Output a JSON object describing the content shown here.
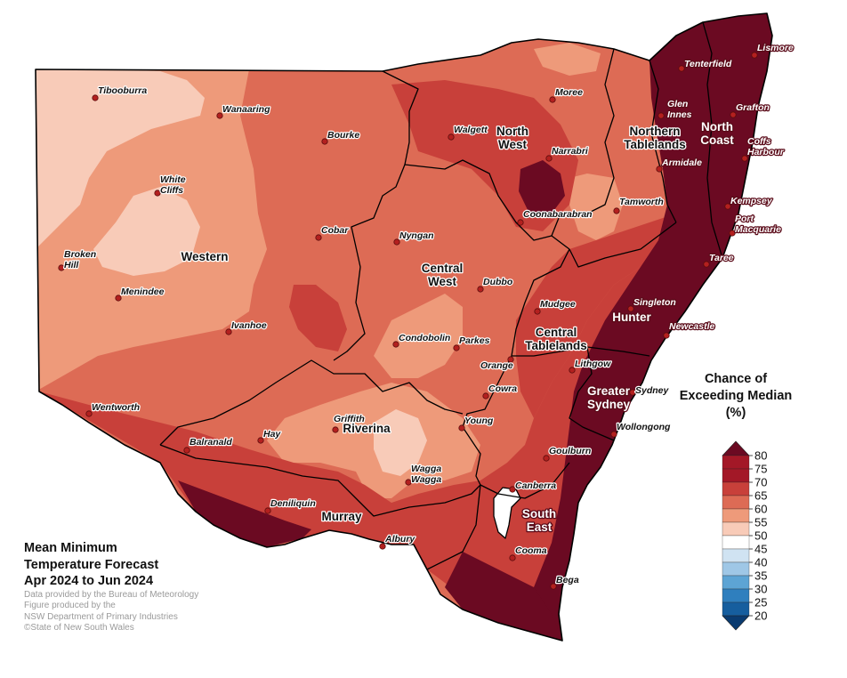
{
  "legend": {
    "title_lines": [
      "Chance of",
      "Exceeding Median",
      "(%)"
    ],
    "ticks": [
      "80",
      "75",
      "70",
      "65",
      "60",
      "55",
      "50",
      "45",
      "40",
      "35",
      "30",
      "25",
      "20"
    ],
    "colors": [
      "#6b0a22",
      "#a31827",
      "#c8403a",
      "#dd6b55",
      "#ee9a7a",
      "#f8cbb8",
      "#ffffff",
      "#d0e3f2",
      "#9fc7e6",
      "#5da4d4",
      "#2f7fbe",
      "#165e9e",
      "#0a3b70"
    ]
  },
  "footer": {
    "title_lines": [
      "Mean Minimum",
      "Temperature Forecast",
      "Apr 2024 to Jun 2024"
    ],
    "credit_lines": [
      "Data provided by the Bureau of Meteorology",
      "Figure produced by the",
      "NSW Department of Primary Industries",
      "©State of New South Wales"
    ]
  },
  "regions": [
    {
      "id": "western",
      "lines": [
        "Western"
      ]
    },
    {
      "id": "north-west",
      "lines": [
        "North",
        "West"
      ]
    },
    {
      "id": "northern-tablelands",
      "lines": [
        "Northern",
        "Tablelands"
      ]
    },
    {
      "id": "north-coast",
      "lines": [
        "North",
        "Coast"
      ]
    },
    {
      "id": "central-west",
      "lines": [
        "Central",
        "West"
      ]
    },
    {
      "id": "central-tablelands",
      "lines": [
        "Central",
        "Tablelands"
      ]
    },
    {
      "id": "hunter",
      "lines": [
        "Hunter"
      ]
    },
    {
      "id": "greater-sydney",
      "lines": [
        "Greater",
        "Sydney"
      ]
    },
    {
      "id": "riverina",
      "lines": [
        "Riverina"
      ]
    },
    {
      "id": "murray",
      "lines": [
        "Murray"
      ]
    },
    {
      "id": "south-east",
      "lines": [
        "South",
        "East"
      ]
    }
  ],
  "towns": [
    {
      "id": "tibooburra",
      "lines": [
        "Tibooburra"
      ]
    },
    {
      "id": "wanaaring",
      "lines": [
        "Wanaaring"
      ]
    },
    {
      "id": "bourke",
      "lines": [
        "Bourke"
      ]
    },
    {
      "id": "white-cliffs",
      "lines": [
        "White",
        "Cliffs"
      ]
    },
    {
      "id": "broken-hill",
      "lines": [
        "Broken",
        "Hill"
      ]
    },
    {
      "id": "menindee",
      "lines": [
        "Menindee"
      ]
    },
    {
      "id": "ivanhoe",
      "lines": [
        "Ivanhoe"
      ]
    },
    {
      "id": "cobar",
      "lines": [
        "Cobar"
      ]
    },
    {
      "id": "nyngan",
      "lines": [
        "Nyngan"
      ]
    },
    {
      "id": "wentworth",
      "lines": [
        "Wentworth"
      ]
    },
    {
      "id": "balranald",
      "lines": [
        "Balranald"
      ]
    },
    {
      "id": "hay",
      "lines": [
        "Hay"
      ]
    },
    {
      "id": "griffith",
      "lines": [
        "Griffith"
      ]
    },
    {
      "id": "deniliquin",
      "lines": [
        "Deniliquin"
      ]
    },
    {
      "id": "albury",
      "lines": [
        "Albury"
      ]
    },
    {
      "id": "wagga",
      "lines": [
        "Wagga",
        "Wagga"
      ]
    },
    {
      "id": "young",
      "lines": [
        "Young"
      ]
    },
    {
      "id": "cowra",
      "lines": [
        "Cowra"
      ]
    },
    {
      "id": "orange",
      "lines": [
        "Orange"
      ]
    },
    {
      "id": "parkes",
      "lines": [
        "Parkes"
      ]
    },
    {
      "id": "condobolin",
      "lines": [
        "Condobolin"
      ]
    },
    {
      "id": "dubbo",
      "lines": [
        "Dubbo"
      ]
    },
    {
      "id": "mudgee",
      "lines": [
        "Mudgee"
      ]
    },
    {
      "id": "lithgow",
      "lines": [
        "Lithgow"
      ]
    },
    {
      "id": "goulburn",
      "lines": [
        "Goulburn"
      ]
    },
    {
      "id": "canberra",
      "lines": [
        "Canberra"
      ]
    },
    {
      "id": "cooma",
      "lines": [
        "Cooma"
      ]
    },
    {
      "id": "bega",
      "lines": [
        "Bega"
      ]
    },
    {
      "id": "wollongong",
      "lines": [
        "Wollongong"
      ]
    },
    {
      "id": "sydney",
      "lines": [
        "Sydney"
      ]
    },
    {
      "id": "newcastle",
      "lines": [
        "Newcastle"
      ]
    },
    {
      "id": "singleton",
      "lines": [
        "Singleton"
      ]
    },
    {
      "id": "taree",
      "lines": [
        "Taree"
      ]
    },
    {
      "id": "port-macquarie",
      "lines": [
        "Port",
        "Macquarie"
      ]
    },
    {
      "id": "kempsey",
      "lines": [
        "Kempsey"
      ]
    },
    {
      "id": "coffs-harbour",
      "lines": [
        "Coffs",
        "Harbour"
      ]
    },
    {
      "id": "grafton",
      "lines": [
        "Grafton"
      ]
    },
    {
      "id": "lismore",
      "lines": [
        "Lismore"
      ]
    },
    {
      "id": "tenterfield",
      "lines": [
        "Tenterfield"
      ]
    },
    {
      "id": "glen-innes",
      "lines": [
        "Glen",
        "Innes"
      ]
    },
    {
      "id": "armidale",
      "lines": [
        "Armidale"
      ]
    },
    {
      "id": "tamworth",
      "lines": [
        "Tamworth"
      ]
    },
    {
      "id": "coonabarabran",
      "lines": [
        "Coonabarabran"
      ]
    },
    {
      "id": "narrabri",
      "lines": [
        "Narrabri"
      ]
    },
    {
      "id": "walgett",
      "lines": [
        "Walgett"
      ]
    },
    {
      "id": "moree",
      "lines": [
        "Moree"
      ]
    }
  ]
}
